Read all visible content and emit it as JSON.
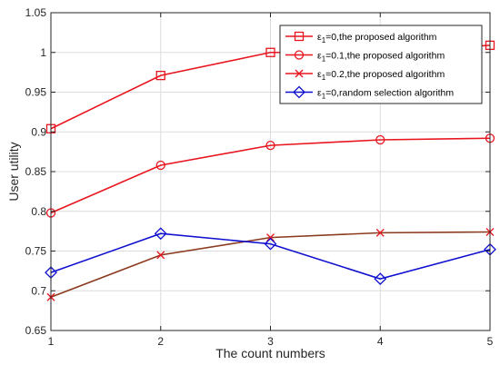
{
  "chart_data": {
    "type": "line",
    "xlabel": "The count numbers",
    "ylabel": "User utility",
    "x": [
      1,
      2,
      3,
      4,
      5
    ],
    "xlim": [
      1,
      5
    ],
    "ylim": [
      0.65,
      1.05
    ],
    "xticks": [
      "1",
      "2",
      "3",
      "4",
      "5"
    ],
    "yticks": [
      "0.65",
      "0.7",
      "0.75",
      "0.8",
      "0.85",
      "0.9",
      "0.95",
      "1",
      "1.05"
    ],
    "grid": true,
    "legend_position": "top-right",
    "series": [
      {
        "name_symbol": "ε",
        "name_subscript": "1",
        "name_rest": "=0,the proposed algorithm",
        "color": "#e8141e",
        "marker": "square",
        "values": [
          0.904,
          0.971,
          1.0,
          1.0,
          1.009
        ]
      },
      {
        "name_symbol": "ε",
        "name_subscript": "1",
        "name_rest": "=0.1,the proposed algorithm",
        "color": "#e8141e",
        "marker": "circle",
        "values": [
          0.798,
          0.858,
          0.883,
          0.89,
          0.892
        ]
      },
      {
        "name_symbol": "ε",
        "name_subscript": "1",
        "name_rest": "=0.2,the proposed algorithm",
        "color": "#e8141e",
        "legend_color": "#e8141e",
        "line_color": "#8b3a1e",
        "marker": "x",
        "values": [
          0.692,
          0.745,
          0.767,
          0.773,
          0.774
        ]
      },
      {
        "name_symbol": "ε",
        "name_subscript": "1",
        "name_rest": "=0,random selection algorithm",
        "color": "#1010d0",
        "marker": "diamond",
        "values": [
          0.723,
          0.772,
          0.759,
          0.715,
          0.752
        ]
      }
    ]
  }
}
